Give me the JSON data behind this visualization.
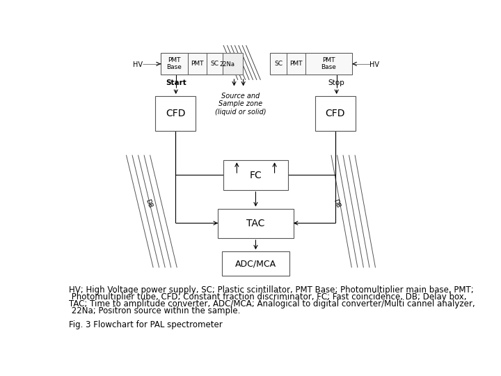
{
  "bg_color": "#ffffff",
  "caption_lines": [
    "HV; High Voltage power supply, SC; Plastic scintillator, PMT Base; Photomultiplier main base, PMT;",
    " Photomultiplier tube, CFD; Constant fraction discriminator, FC; Fast coincidence, DB; Delay box,",
    "TAC; Time to amplitude converter, ADC/MCA; Analogical to digital converter/Multi cannel analyzer,",
    " 22Na; Positron source within the sample.",
    "",
    "Fig. 3 Flowchart for PAL spectrometer"
  ],
  "caption_fontsize": 8.5
}
